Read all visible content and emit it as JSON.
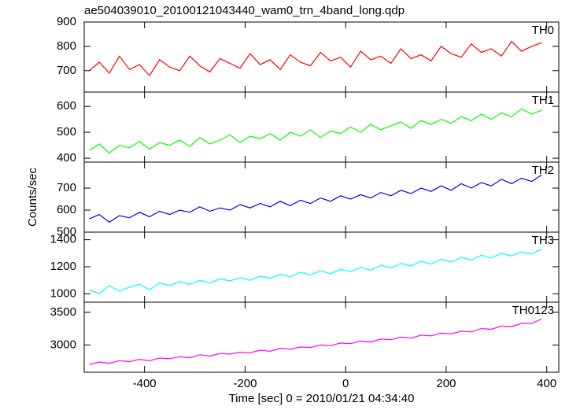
{
  "chart_data": [
    {
      "type": "line",
      "title": "ae504039010_20100121043440_wam0_trn_4band_long.qdp",
      "x": [
        -510,
        -490,
        -470,
        -450,
        -430,
        -410,
        -390,
        -370,
        -350,
        -330,
        -310,
        -290,
        -270,
        -250,
        -230,
        -210,
        -190,
        -170,
        -150,
        -130,
        -110,
        -90,
        -70,
        -50,
        -30,
        -10,
        10,
        30,
        50,
        70,
        90,
        110,
        130,
        150,
        170,
        190,
        210,
        230,
        250,
        270,
        290,
        310,
        330,
        350,
        370,
        390
      ],
      "series": [
        {
          "name": "TH0",
          "color": "#ff0000",
          "values": [
            700,
            735,
            690,
            760,
            705,
            725,
            680,
            745,
            715,
            700,
            760,
            720,
            695,
            750,
            730,
            710,
            770,
            725,
            745,
            705,
            765,
            735,
            720,
            775,
            740,
            755,
            715,
            780,
            745,
            760,
            730,
            790,
            750,
            765,
            740,
            800,
            770,
            755,
            810,
            775,
            790,
            760,
            820,
            780,
            800,
            815
          ]
        }
      ],
      "xlim": [
        -520,
        424
      ],
      "ylim": [
        612,
        900
      ],
      "yticks": [
        700,
        800,
        900
      ]
    },
    {
      "type": "line",
      "x": [
        -510,
        -490,
        -470,
        -450,
        -430,
        -410,
        -390,
        -370,
        -350,
        -330,
        -310,
        -290,
        -270,
        -250,
        -230,
        -210,
        -190,
        -170,
        -150,
        -130,
        -110,
        -90,
        -70,
        -50,
        -30,
        -10,
        10,
        30,
        50,
        70,
        90,
        110,
        130,
        150,
        170,
        190,
        210,
        230,
        250,
        270,
        290,
        310,
        330,
        350,
        370,
        390
      ],
      "series": [
        {
          "name": "TH1",
          "color": "#00ff00",
          "values": [
            430,
            455,
            420,
            450,
            440,
            465,
            435,
            460,
            450,
            470,
            445,
            480,
            455,
            470,
            490,
            460,
            485,
            475,
            495,
            470,
            500,
            485,
            510,
            480,
            505,
            495,
            520,
            500,
            530,
            510,
            525,
            540,
            515,
            545,
            530,
            550,
            535,
            560,
            545,
            570,
            550,
            575,
            560,
            590,
            570,
            585
          ]
        }
      ],
      "xlim": [
        -520,
        424
      ],
      "ylim": [
        385,
        655
      ],
      "yticks": [
        400,
        500,
        600
      ]
    },
    {
      "type": "line",
      "ylabel": "Counts/sec",
      "x": [
        -510,
        -490,
        -470,
        -450,
        -430,
        -410,
        -390,
        -370,
        -350,
        -330,
        -310,
        -290,
        -270,
        -250,
        -230,
        -210,
        -190,
        -170,
        -150,
        -130,
        -110,
        -90,
        -70,
        -50,
        -30,
        -10,
        10,
        30,
        50,
        70,
        90,
        110,
        130,
        150,
        170,
        190,
        210,
        230,
        250,
        270,
        290,
        310,
        330,
        350,
        370,
        390
      ],
      "series": [
        {
          "name": "TH2",
          "color": "#0000ff",
          "values": [
            560,
            580,
            545,
            575,
            565,
            590,
            570,
            595,
            580,
            600,
            590,
            615,
            595,
            610,
            600,
            625,
            610,
            630,
            615,
            640,
            620,
            645,
            630,
            655,
            640,
            665,
            650,
            670,
            655,
            680,
            665,
            690,
            675,
            700,
            685,
            710,
            690,
            720,
            700,
            725,
            710,
            740,
            720,
            745,
            730,
            760
          ]
        }
      ],
      "xlim": [
        -520,
        424
      ],
      "ylim": [
        500,
        818
      ],
      "yticks": [
        500,
        600,
        700
      ]
    },
    {
      "type": "line",
      "x": [
        -510,
        -490,
        -470,
        -450,
        -430,
        -410,
        -390,
        -370,
        -350,
        -330,
        -310,
        -290,
        -270,
        -250,
        -230,
        -210,
        -190,
        -170,
        -150,
        -130,
        -110,
        -90,
        -70,
        -50,
        -30,
        -10,
        10,
        30,
        50,
        70,
        90,
        110,
        130,
        150,
        170,
        190,
        210,
        230,
        250,
        270,
        290,
        310,
        330,
        350,
        370,
        390
      ],
      "series": [
        {
          "name": "TH3",
          "color": "#00ffff",
          "values": [
            1030,
            1000,
            1060,
            1020,
            1050,
            1070,
            1030,
            1080,
            1060,
            1090,
            1070,
            1100,
            1080,
            1110,
            1095,
            1120,
            1100,
            1130,
            1115,
            1145,
            1125,
            1160,
            1140,
            1170,
            1150,
            1180,
            1165,
            1195,
            1175,
            1210,
            1190,
            1225,
            1205,
            1240,
            1220,
            1255,
            1235,
            1270,
            1250,
            1285,
            1265,
            1300,
            1280,
            1310,
            1295,
            1330
          ]
        }
      ],
      "xlim": [
        -520,
        424
      ],
      "ylim": [
        938,
        1456
      ],
      "yticks": [
        1000,
        1200,
        1400
      ]
    },
    {
      "type": "line",
      "xlabel": "Time [sec] 0 = 2010/01/21 04:34:40",
      "x": [
        -510,
        -490,
        -470,
        -450,
        -430,
        -410,
        -390,
        -370,
        -350,
        -330,
        -310,
        -290,
        -270,
        -250,
        -230,
        -210,
        -190,
        -170,
        -150,
        -130,
        -110,
        -90,
        -70,
        -50,
        -30,
        -10,
        10,
        30,
        50,
        70,
        90,
        110,
        130,
        150,
        170,
        190,
        210,
        230,
        250,
        270,
        290,
        310,
        330,
        350,
        370,
        390
      ],
      "series": [
        {
          "name": "TH0123",
          "color": "#ff00ff",
          "values": [
            2700,
            2740,
            2720,
            2760,
            2745,
            2780,
            2760,
            2800,
            2790,
            2820,
            2805,
            2850,
            2830,
            2870,
            2860,
            2890,
            2880,
            2920,
            2905,
            2950,
            2935,
            2970,
            2960,
            3000,
            2990,
            3030,
            3020,
            3060,
            3045,
            3090,
            3080,
            3120,
            3105,
            3150,
            3140,
            3180,
            3170,
            3210,
            3200,
            3250,
            3240,
            3290,
            3280,
            3330,
            3330,
            3400
          ]
        }
      ],
      "xlim": [
        -520,
        424
      ],
      "ylim": [
        2583,
        3655
      ],
      "yticks": [
        3000,
        3500
      ],
      "xticks": [
        -400,
        -200,
        0,
        200,
        400
      ]
    }
  ]
}
